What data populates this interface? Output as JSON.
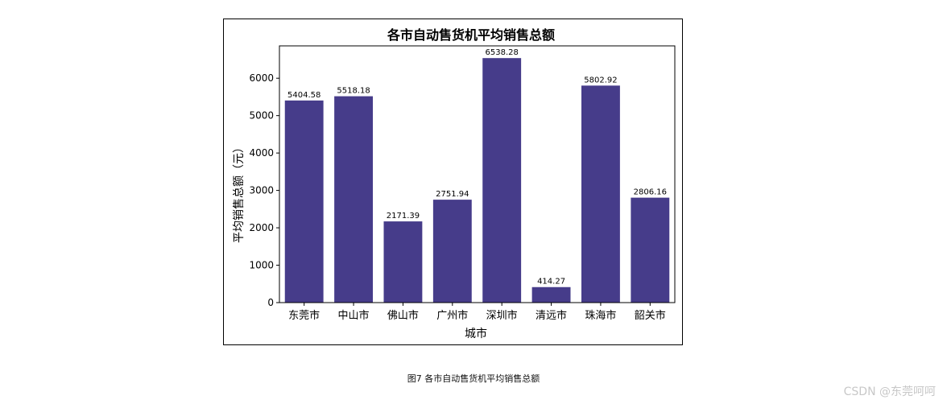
{
  "chart_data": {
    "type": "bar",
    "title": "各市自动售货机平均销售总额",
    "xlabel": "城市",
    "ylabel": "平均销售总额（元）",
    "categories": [
      "东莞市",
      "中山市",
      "佛山市",
      "广州市",
      "深圳市",
      "清远市",
      "珠海市",
      "韶关市"
    ],
    "values": [
      5404.58,
      5518.18,
      2171.39,
      2751.94,
      6538.28,
      414.27,
      5802.92,
      2806.16
    ],
    "value_labels": [
      "5404.58",
      "5518.18",
      "2171.39",
      "2751.94",
      "6538.28",
      "414.27",
      "5802.92",
      "2806.16"
    ],
    "yticks": [
      0,
      1000,
      2000,
      3000,
      4000,
      5000,
      6000
    ],
    "ylim": [
      0,
      6865
    ],
    "bar_color": "#463c8a",
    "grid": false,
    "legend": "none"
  },
  "caption": "图7 各市自动售货机平均销售总额",
  "watermark": "CSDN @东莞呵呵"
}
